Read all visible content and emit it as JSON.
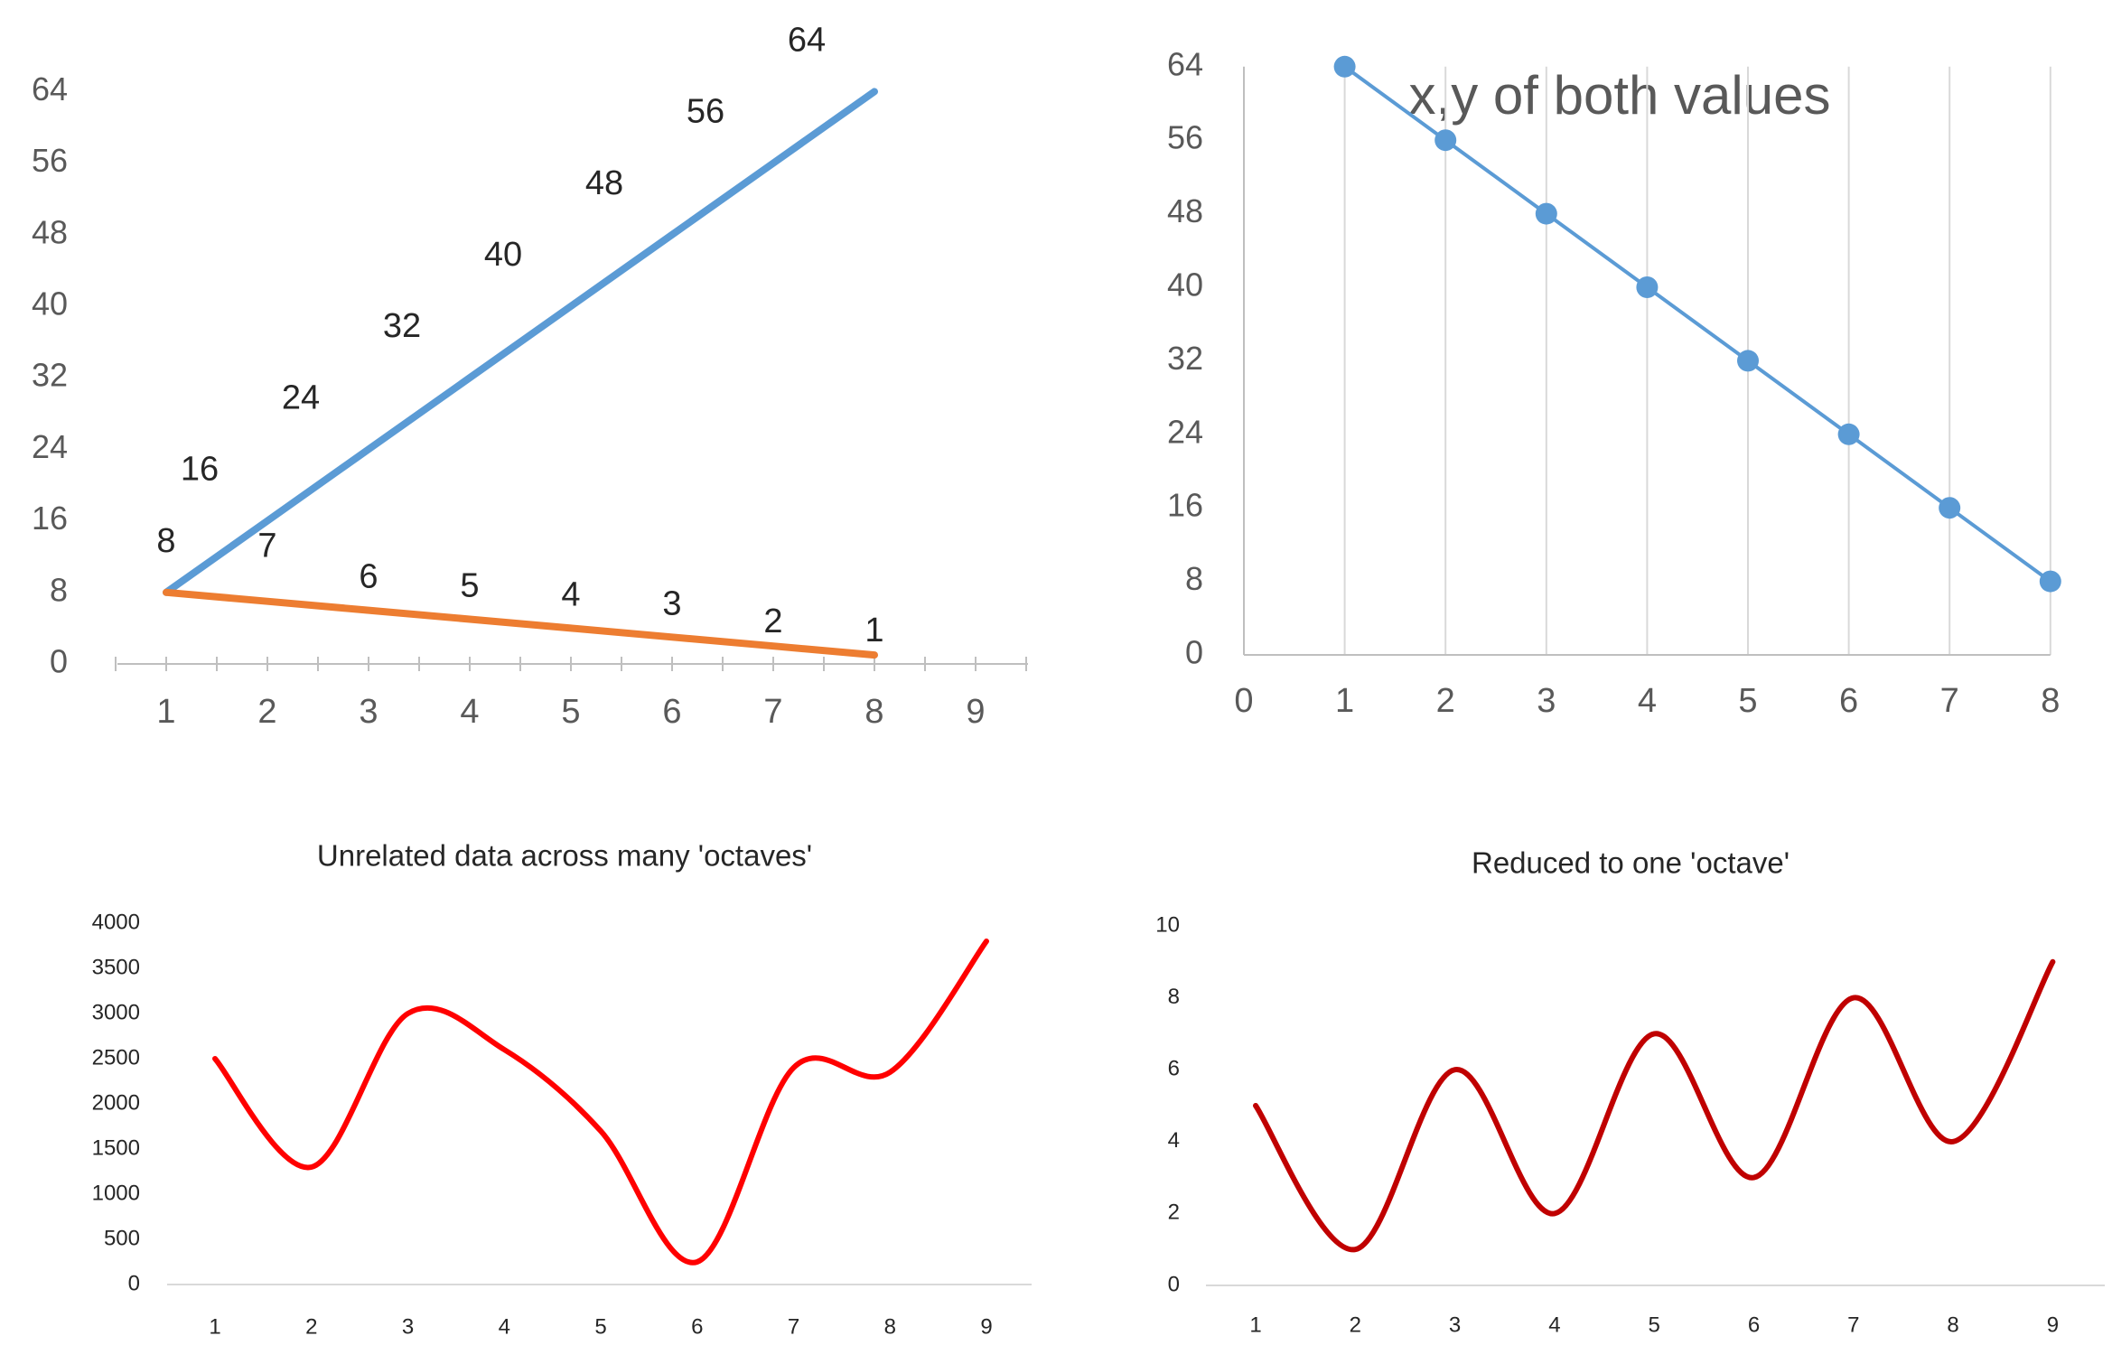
{
  "chart_data": [
    {
      "id": "chart1",
      "type": "line",
      "title": "",
      "xlabel": "",
      "ylabel": "",
      "categories": [
        "1",
        "2",
        "3",
        "4",
        "5",
        "6",
        "7",
        "8",
        "9"
      ],
      "x_ticks": [
        "1",
        "2",
        "3",
        "4",
        "5",
        "6",
        "7",
        "8",
        "9"
      ],
      "y_ticks": [
        "0",
        "8",
        "16",
        "24",
        "32",
        "40",
        "48",
        "56",
        "64"
      ],
      "ylim": [
        0,
        64
      ],
      "grid": false,
      "legend": "none",
      "series": [
        {
          "color": "#5b9bd5",
          "x": [
            1,
            2,
            3,
            4,
            5,
            6,
            7,
            8
          ],
          "values": [
            8,
            16,
            24,
            32,
            40,
            48,
            56,
            64
          ],
          "labels": [
            "8",
            "16",
            "24",
            "32",
            "40",
            "48",
            "56",
            "64"
          ]
        },
        {
          "color": "#ed7d31",
          "x": [
            1,
            2,
            3,
            4,
            5,
            6,
            7,
            8
          ],
          "values": [
            8,
            7,
            6,
            5,
            4,
            3,
            2,
            1
          ],
          "labels": [
            "",
            "7",
            "6",
            "5",
            "4",
            "3",
            "2",
            "1"
          ]
        }
      ]
    },
    {
      "id": "chart2",
      "type": "scatter",
      "title": "x,y of both values",
      "xlabel": "",
      "ylabel": "",
      "x_ticks": [
        "0",
        "1",
        "2",
        "3",
        "4",
        "5",
        "6",
        "7",
        "8"
      ],
      "y_ticks": [
        "0",
        "8",
        "16",
        "24",
        "32",
        "40",
        "48",
        "56",
        "64"
      ],
      "xlim": [
        0,
        8
      ],
      "ylim": [
        0,
        64
      ],
      "grid": "vertical",
      "legend": "none",
      "series": [
        {
          "color": "#5b9bd5",
          "x": [
            1,
            2,
            3,
            4,
            5,
            6,
            7,
            8
          ],
          "values": [
            64,
            56,
            48,
            40,
            32,
            24,
            16,
            8
          ]
        }
      ]
    },
    {
      "id": "chart3",
      "type": "line",
      "title": "Unrelated data across many 'octaves'",
      "xlabel": "",
      "ylabel": "",
      "categories": [
        "1",
        "2",
        "3",
        "4",
        "5",
        "6",
        "7",
        "8",
        "9"
      ],
      "y_ticks": [
        "0",
        "500",
        "1000",
        "1500",
        "2000",
        "2500",
        "3000",
        "3500",
        "4000"
      ],
      "ylim": [
        0,
        4000
      ],
      "grid": false,
      "legend": "none",
      "smooth": true,
      "series": [
        {
          "color": "#ff0000",
          "x": [
            1,
            2,
            3,
            4,
            5,
            6,
            7,
            8,
            9
          ],
          "values": [
            2500,
            1300,
            3000,
            2600,
            1700,
            250,
            2400,
            2350,
            3800
          ]
        }
      ]
    },
    {
      "id": "chart4",
      "type": "line",
      "title": "Reduced to one 'octave'",
      "xlabel": "",
      "ylabel": "",
      "categories": [
        "1",
        "2",
        "3",
        "4",
        "5",
        "6",
        "7",
        "8",
        "9"
      ],
      "y_ticks": [
        "0",
        "2",
        "4",
        "6",
        "8",
        "10"
      ],
      "ylim": [
        0,
        10
      ],
      "grid": false,
      "legend": "none",
      "smooth": true,
      "series": [
        {
          "color": "#c00000",
          "x": [
            1,
            2,
            3,
            4,
            5,
            6,
            7,
            8,
            9
          ],
          "values": [
            5,
            1,
            6,
            2,
            7,
            3,
            8,
            4,
            9
          ]
        }
      ]
    }
  ]
}
